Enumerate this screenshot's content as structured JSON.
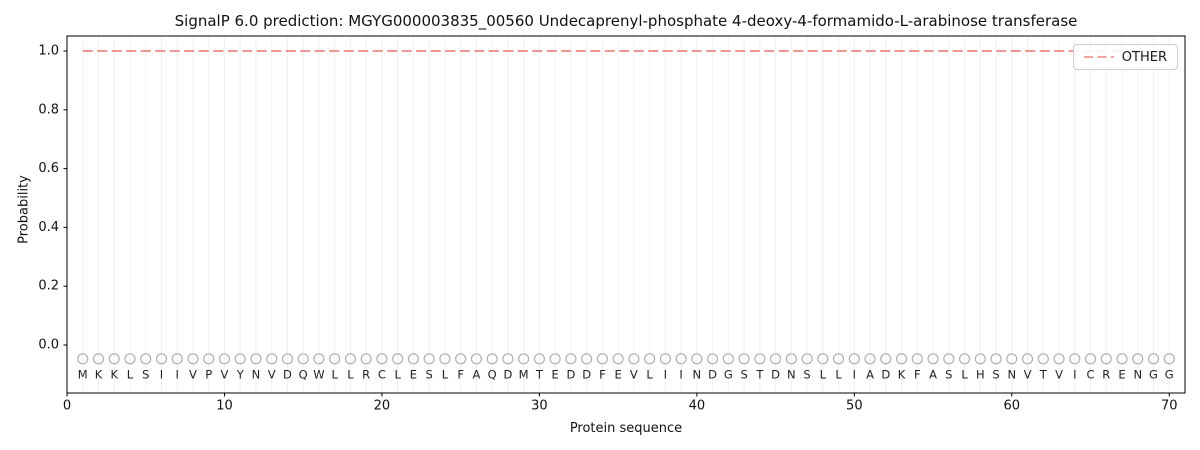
{
  "chart_data": {
    "type": "line",
    "title": "SignalP 6.0 prediction: MGYG000003835_00560 Undecaprenyl-phosphate 4-deoxy-4-formamido-L-arabinose transferase",
    "xlabel": "Protein sequence",
    "ylabel": "Probability",
    "xlim": [
      0,
      71
    ],
    "ylim": [
      -0.163,
      1.051
    ],
    "x_ticks": [
      {
        "value": 0,
        "label": "0"
      },
      {
        "value": 10,
        "label": "10"
      },
      {
        "value": 20,
        "label": "20"
      },
      {
        "value": 30,
        "label": "30"
      },
      {
        "value": 40,
        "label": "40"
      },
      {
        "value": 50,
        "label": "50"
      },
      {
        "value": 60,
        "label": "60"
      },
      {
        "value": 70,
        "label": "70"
      }
    ],
    "y_ticks": [
      {
        "value": 0.0,
        "label": "0.0"
      },
      {
        "value": 0.2,
        "label": "0.2"
      },
      {
        "value": 0.4,
        "label": "0.4"
      },
      {
        "value": 0.6,
        "label": "0.6"
      },
      {
        "value": 0.8,
        "label": "0.8"
      },
      {
        "value": 1.0,
        "label": "1.0"
      }
    ],
    "grid": "vertical line at every residue position 1-70",
    "legend": {
      "position": "upper right",
      "entries": [
        {
          "label": "OTHER",
          "style": "dashed",
          "color": "#ee8585"
        }
      ]
    },
    "series": [
      {
        "name": "OTHER",
        "style": "dashed",
        "color": "#ee8585",
        "x": [
          1,
          70
        ],
        "y": [
          1.0,
          1.0
        ],
        "interpretation": "constant probability 1.0 for OTHER across residues 1 through 70"
      }
    ],
    "sequence": "MKKLSIIVPVYNVDQWLLRCLESLFAQDMTEDDFEVLIINDGSTDNSLLIADKFASLHSNVTVICRENGG",
    "sequence_length": 70,
    "marker_row_value": -0.047,
    "letter_row_value": -0.1
  },
  "colors": {
    "line_other": "#ee8585",
    "grid": "#f0f0f0",
    "marker_stroke": "#b0b0b0",
    "letter": "#1f1f1f",
    "spine": "#000000",
    "tick": "#000000",
    "tick_label": "#111111",
    "legend_border": "#cccccc",
    "background": "#ffffff"
  }
}
